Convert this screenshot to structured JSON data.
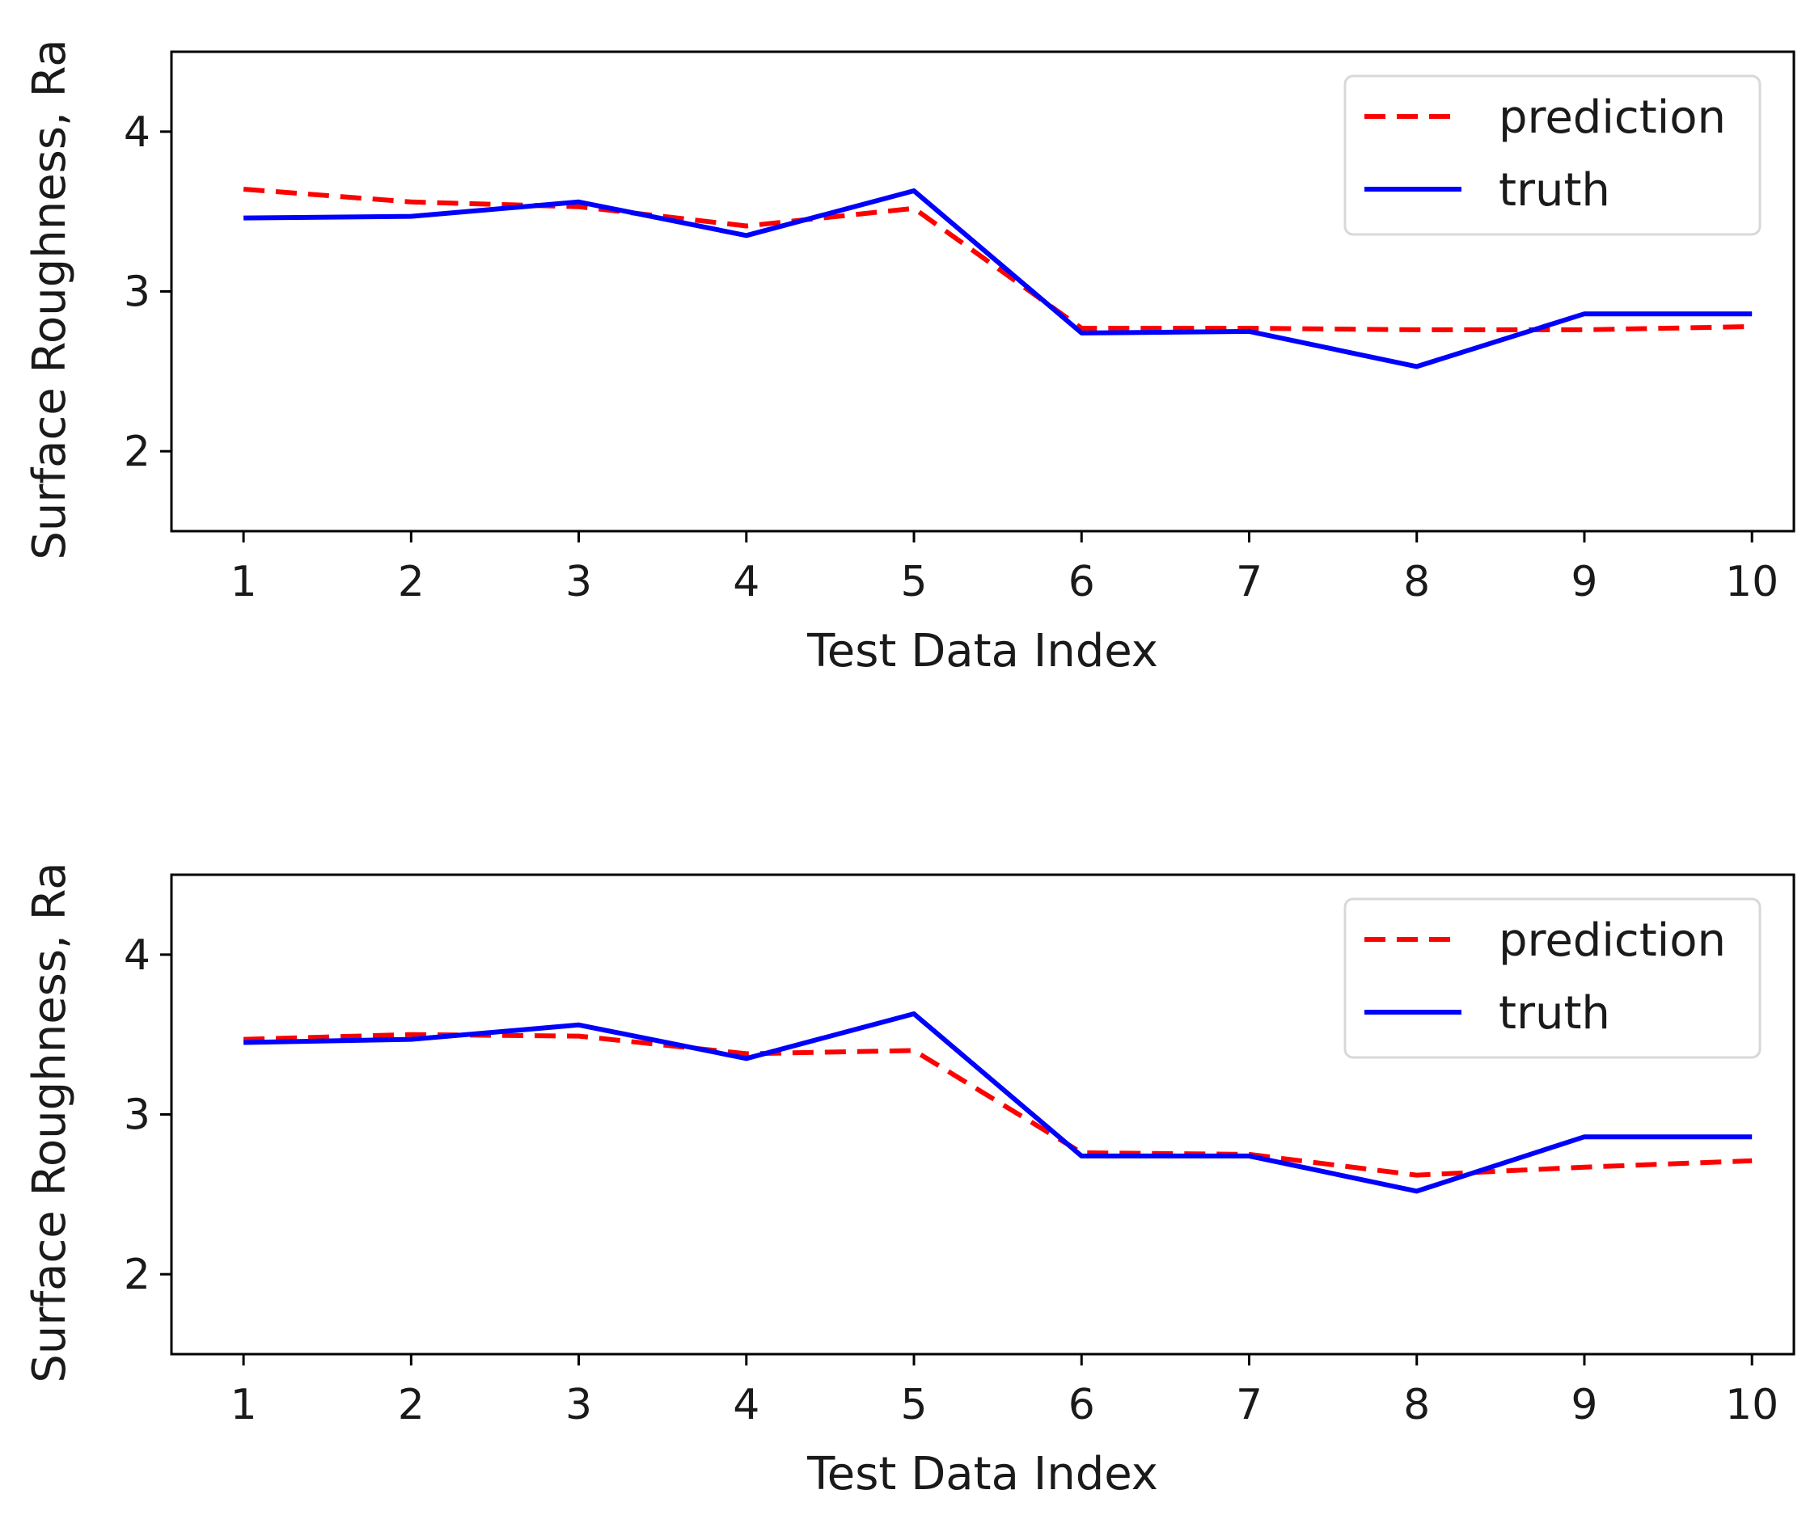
{
  "chart_data": [
    {
      "type": "line",
      "title": "",
      "xlabel": "Test Data Index",
      "ylabel": "Surface Roughness, Ra",
      "xlim": [
        0.57,
        10.25
      ],
      "ylim": [
        1.5,
        4.5
      ],
      "xticks": [
        1,
        2,
        3,
        4,
        5,
        6,
        7,
        8,
        9,
        10
      ],
      "yticks": [
        2,
        3,
        4
      ],
      "x": [
        1,
        2,
        3,
        4,
        5,
        6,
        7,
        8,
        9,
        10
      ],
      "legend_position": "top-right",
      "grid": false,
      "series": [
        {
          "name": "prediction",
          "color": "#ff0000",
          "style": "dashed",
          "values": [
            3.64,
            3.56,
            3.53,
            3.41,
            3.52,
            2.77,
            2.77,
            2.76,
            2.76,
            2.78
          ]
        },
        {
          "name": "truth",
          "color": "#0000ff",
          "style": "solid",
          "values": [
            3.46,
            3.47,
            3.56,
            3.35,
            3.63,
            2.74,
            2.75,
            2.53,
            2.86,
            2.86
          ]
        }
      ]
    },
    {
      "type": "line",
      "title": "",
      "xlabel": "Test Data Index",
      "ylabel": "Surface Roughness, Ra",
      "xlim": [
        0.57,
        10.25
      ],
      "ylim": [
        1.5,
        4.5
      ],
      "xticks": [
        1,
        2,
        3,
        4,
        5,
        6,
        7,
        8,
        9,
        10
      ],
      "yticks": [
        2,
        3,
        4
      ],
      "x": [
        1,
        2,
        3,
        4,
        5,
        6,
        7,
        8,
        9,
        10
      ],
      "legend_position": "top-right",
      "grid": false,
      "series": [
        {
          "name": "prediction",
          "color": "#ff0000",
          "style": "dashed",
          "values": [
            3.47,
            3.5,
            3.49,
            3.38,
            3.4,
            2.76,
            2.75,
            2.62,
            2.67,
            2.71
          ]
        },
        {
          "name": "truth",
          "color": "#0000ff",
          "style": "solid",
          "values": [
            3.45,
            3.47,
            3.56,
            3.35,
            3.63,
            2.74,
            2.74,
            2.52,
            2.86,
            2.86
          ]
        }
      ]
    }
  ]
}
